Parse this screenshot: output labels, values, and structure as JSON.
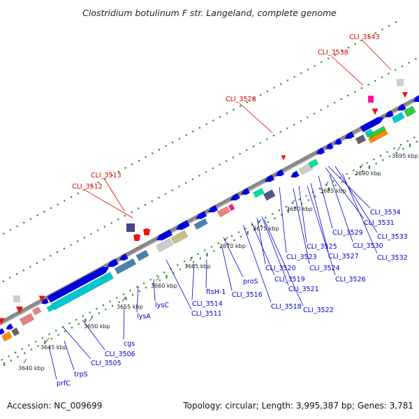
{
  "title": "Clostridium botulinum F str. Langeland, complete genome",
  "footer": {
    "accession": "Accession: NC_009699",
    "summary": "Topology: circular; Length: 3,995,387 bp; Genes: 3,781"
  },
  "colors": {
    "backbone": "#888888",
    "forward_gene_label": "#0000cc",
    "pseudo_gene_label": "#dd0000",
    "dots": "#2e8b2e"
  },
  "ticks": [
    "3640 kbp",
    "3645 kbp",
    "3650 kbp",
    "3655 kbp",
    "3660 kbp",
    "3665 kbp",
    "3670 kbp",
    "3675 kbp",
    "3680 kbp",
    "3685 kbp",
    "3690 kbp",
    "3695 kbp"
  ],
  "gene_labels": [
    {
      "text": "CLI_3543",
      "kind": "pseudo"
    },
    {
      "text": "CLI_3538",
      "kind": "pseudo"
    },
    {
      "text": "CLI_3528",
      "kind": "pseudo"
    },
    {
      "text": "CLI_3513",
      "kind": "pseudo"
    },
    {
      "text": "CLI_3512",
      "kind": "pseudo"
    },
    {
      "text": "CLI_3534",
      "kind": "gene"
    },
    {
      "text": "CLI_3531",
      "kind": "gene"
    },
    {
      "text": "CLI_3533",
      "kind": "gene"
    },
    {
      "text": "CLI_3529",
      "kind": "gene"
    },
    {
      "text": "CLI_3530",
      "kind": "gene"
    },
    {
      "text": "CLI_3532",
      "kind": "gene"
    },
    {
      "text": "CLI_3525",
      "kind": "gene"
    },
    {
      "text": "CLI_3527",
      "kind": "gene"
    },
    {
      "text": "CLI_3523",
      "kind": "gene"
    },
    {
      "text": "CLI_3524",
      "kind": "gene"
    },
    {
      "text": "CLI_3526",
      "kind": "gene"
    },
    {
      "text": "CLI_3520",
      "kind": "gene"
    },
    {
      "text": "CLI_3519",
      "kind": "gene"
    },
    {
      "text": "proS",
      "kind": "gene"
    },
    {
      "text": "CLI_3521",
      "kind": "gene"
    },
    {
      "text": "CLI_3516",
      "kind": "gene"
    },
    {
      "text": "CLI_3518",
      "kind": "gene"
    },
    {
      "text": "CLI_3522",
      "kind": "gene"
    },
    {
      "text": "ftsH-1",
      "kind": "gene"
    },
    {
      "text": "CLI_3514",
      "kind": "gene"
    },
    {
      "text": "CLI_3511",
      "kind": "gene"
    },
    {
      "text": "lysC",
      "kind": "gene"
    },
    {
      "text": "lysA",
      "kind": "gene"
    },
    {
      "text": "cgs",
      "kind": "gene"
    },
    {
      "text": "CLI_3506",
      "kind": "gene"
    },
    {
      "text": "CLI_3505",
      "kind": "gene"
    },
    {
      "text": "trpS",
      "kind": "gene"
    },
    {
      "text": "prfC",
      "kind": "gene"
    }
  ]
}
